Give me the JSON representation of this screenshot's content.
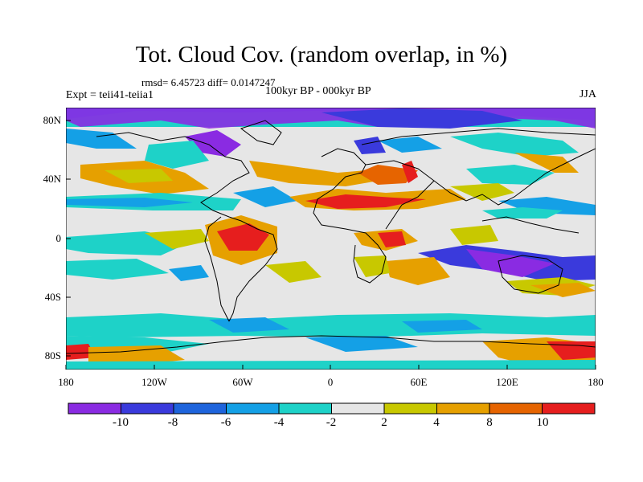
{
  "header": {
    "title": "Tot. Cloud Cov. (random overlap, in %)",
    "stats": "rmsd= 6.45723 diff= 0.0147247",
    "experiment": "Expt = teii41-teiia1",
    "period": "100kyr BP - 000kyr BP",
    "season": "JJA"
  },
  "axes": {
    "lat_labels": [
      "80N",
      "40N",
      "0",
      "40S",
      "80S"
    ],
    "lon_labels": [
      "180",
      "120W",
      "60W",
      "0",
      "60E",
      "120E",
      "180"
    ]
  },
  "colorbar": {
    "colors": [
      "#8a2be2",
      "#3a3adc",
      "#1e64dc",
      "#14a0e6",
      "#1ed2c8",
      "#e6e6e6",
      "#c8c800",
      "#e6a000",
      "#e66400",
      "#e61e1e"
    ],
    "labels": [
      "-10",
      "-8",
      "-6",
      "-4",
      "-2",
      "2",
      "4",
      "8",
      "10"
    ]
  },
  "map": {
    "projection": "cylindrical-equidistant",
    "lon_range": [
      -180,
      180
    ],
    "lat_range": [
      -90,
      90
    ],
    "background_class": "-2 to 2"
  }
}
